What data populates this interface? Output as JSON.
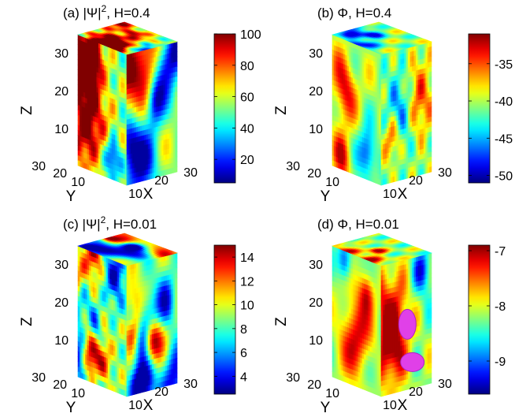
{
  "chart_data": [
    {
      "type": "heatmap",
      "panel": "(a)",
      "title": "(a)  |Ψ|², H=0.4",
      "title_parts": {
        "prefix": "(a)  |Ψ|",
        "sup": "2",
        "suffix": ", H=0.4"
      },
      "xlabel": "X",
      "ylabel": "Y",
      "zlabel": "Z",
      "x_ticks": [
        "10",
        "20",
        "30"
      ],
      "y_ticks": [
        "10",
        "20",
        "30"
      ],
      "z_ticks": [
        "10",
        "20",
        "30"
      ],
      "colorbar": {
        "min": 5,
        "max": 100,
        "ticks": [
          20,
          40,
          60,
          80,
          100
        ]
      },
      "colormap": "jet",
      "field_range": [
        8,
        100
      ],
      "seed": 11,
      "blob_count": 7
    },
    {
      "type": "heatmap",
      "panel": "(b)",
      "title": "(b)  Φ, H=0.4",
      "title_parts": {
        "prefix": "(b)  Φ",
        "sup": "",
        "suffix": ", H=0.4"
      },
      "xlabel": "X",
      "ylabel": "Y",
      "zlabel": "Z",
      "x_ticks": [
        "10",
        "20",
        "30"
      ],
      "y_ticks": [
        "10",
        "20",
        "30"
      ],
      "z_ticks": [
        "10",
        "20",
        "30"
      ],
      "colorbar": {
        "min": -51,
        "max": -31,
        "ticks": [
          -35,
          -40,
          -45,
          -50
        ]
      },
      "colormap": "jet",
      "field_range": [
        -49,
        -32
      ],
      "seed": 23,
      "blob_count": 3
    },
    {
      "type": "heatmap",
      "panel": "(c)",
      "title": "(c)  |Ψ|², H=0.01",
      "title_parts": {
        "prefix": "(c)  |Ψ|",
        "sup": "2",
        "suffix": ", H=0.01"
      },
      "xlabel": "X",
      "ylabel": "Y",
      "zlabel": "Z",
      "x_ticks": [
        "10",
        "20",
        "30"
      ],
      "y_ticks": [
        "10",
        "20",
        "30"
      ],
      "z_ticks": [
        "10",
        "20",
        "30"
      ],
      "colorbar": {
        "min": 2.5,
        "max": 15,
        "ticks": [
          4,
          6,
          8,
          10,
          12,
          14
        ]
      },
      "colormap": "jet",
      "field_range": [
        3,
        14.8
      ],
      "seed": 37,
      "blob_count": 11
    },
    {
      "type": "heatmap",
      "panel": "(d)",
      "title": "(d)  Φ, H=0.01",
      "title_parts": {
        "prefix": "(d)  Φ",
        "sup": "",
        "suffix": ", H=0.01"
      },
      "xlabel": "X",
      "ylabel": "Y",
      "zlabel": "Z",
      "x_ticks": [
        "10",
        "20",
        "30"
      ],
      "y_ticks": [
        "10",
        "20",
        "30"
      ],
      "z_ticks": [
        "10",
        "20",
        "30"
      ],
      "colorbar": {
        "min": -9.6,
        "max": -6.9,
        "ticks": [
          -7,
          -8,
          -9
        ]
      },
      "colormap": "jet",
      "field_range": [
        -9.4,
        -7.0
      ],
      "seed": 53,
      "blob_count": 3,
      "isosurface_color": "#e040e8"
    }
  ]
}
